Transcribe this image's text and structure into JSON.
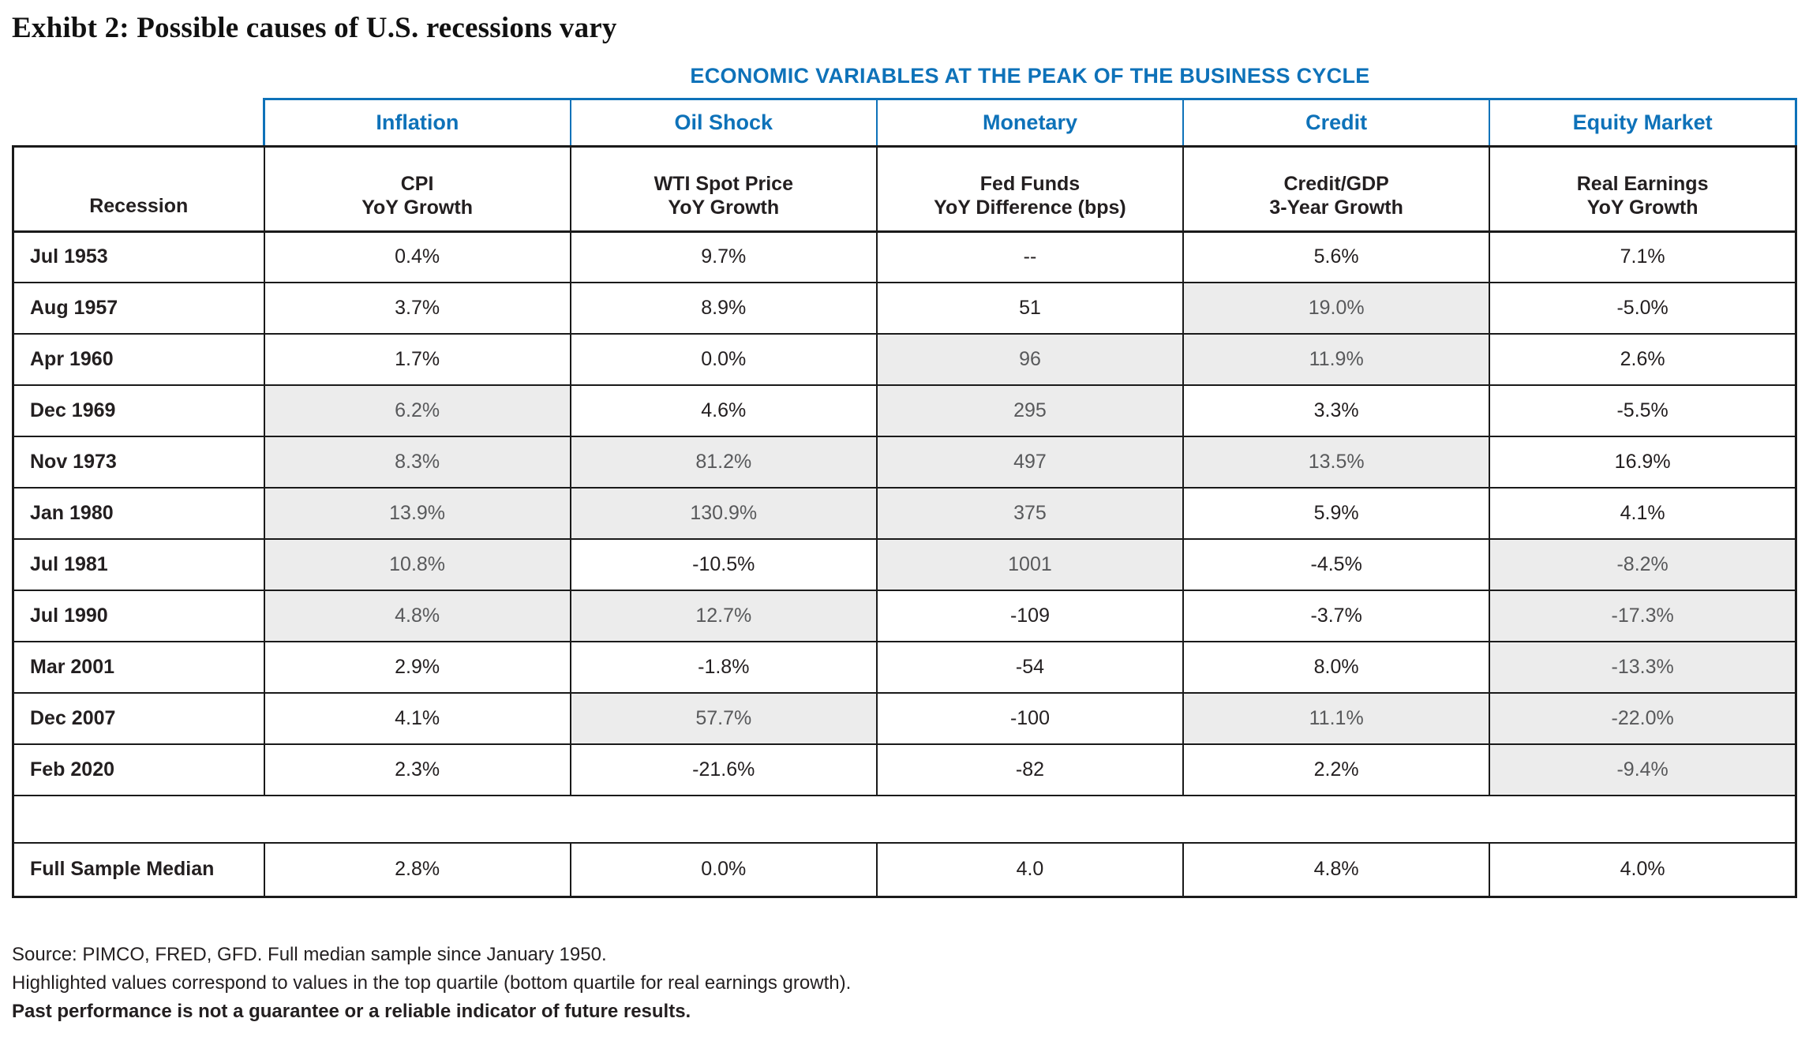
{
  "title": "Exhibt 2: Possible causes of U.S. recessions vary",
  "chart_data": {
    "type": "table",
    "banner": "ECONOMIC VARIABLES AT THE PEAK OF THE BUSINESS CYCLE",
    "group_headers": [
      "Inflation",
      "Oil Shock",
      "Monetary",
      "Credit",
      "Equity Market"
    ],
    "row_header": "Recession",
    "column_headers": [
      [
        "CPI",
        "YoY Growth"
      ],
      [
        "WTI Spot Price",
        "YoY Growth"
      ],
      [
        "Fed Funds",
        "YoY Difference (bps)"
      ],
      [
        "Credit/GDP",
        "3-Year Growth"
      ],
      [
        "Real Earnings",
        "YoY Growth"
      ]
    ],
    "rows": [
      {
        "label": "Jul 1953",
        "values": [
          "0.4%",
          "9.7%",
          "--",
          "5.6%",
          "7.1%"
        ],
        "highlighted": [
          false,
          false,
          false,
          false,
          false
        ]
      },
      {
        "label": "Aug 1957",
        "values": [
          "3.7%",
          "8.9%",
          "51",
          "19.0%",
          "-5.0%"
        ],
        "highlighted": [
          false,
          false,
          false,
          true,
          false
        ]
      },
      {
        "label": "Apr 1960",
        "values": [
          "1.7%",
          "0.0%",
          "96",
          "11.9%",
          "2.6%"
        ],
        "highlighted": [
          false,
          false,
          true,
          true,
          false
        ]
      },
      {
        "label": "Dec 1969",
        "values": [
          "6.2%",
          "4.6%",
          "295",
          "3.3%",
          "-5.5%"
        ],
        "highlighted": [
          true,
          false,
          true,
          false,
          false
        ]
      },
      {
        "label": "Nov 1973",
        "values": [
          "8.3%",
          "81.2%",
          "497",
          "13.5%",
          "16.9%"
        ],
        "highlighted": [
          true,
          true,
          true,
          true,
          false
        ]
      },
      {
        "label": "Jan 1980",
        "values": [
          "13.9%",
          "130.9%",
          "375",
          "5.9%",
          "4.1%"
        ],
        "highlighted": [
          true,
          true,
          true,
          false,
          false
        ]
      },
      {
        "label": "Jul 1981",
        "values": [
          "10.8%",
          "-10.5%",
          "1001",
          "-4.5%",
          "-8.2%"
        ],
        "highlighted": [
          true,
          false,
          true,
          false,
          true
        ]
      },
      {
        "label": "Jul 1990",
        "values": [
          "4.8%",
          "12.7%",
          "-109",
          "-3.7%",
          "-17.3%"
        ],
        "highlighted": [
          true,
          true,
          false,
          false,
          true
        ]
      },
      {
        "label": "Mar 2001",
        "values": [
          "2.9%",
          "-1.8%",
          "-54",
          "8.0%",
          "-13.3%"
        ],
        "highlighted": [
          false,
          false,
          false,
          false,
          true
        ]
      },
      {
        "label": "Dec 2007",
        "values": [
          "4.1%",
          "57.7%",
          "-100",
          "11.1%",
          "-22.0%"
        ],
        "highlighted": [
          false,
          true,
          false,
          true,
          true
        ]
      },
      {
        "label": "Feb 2020",
        "values": [
          "2.3%",
          "-21.6%",
          "-82",
          "2.2%",
          "-9.4%"
        ],
        "highlighted": [
          false,
          false,
          false,
          false,
          true
        ]
      }
    ],
    "median_row": {
      "label": "Full Sample Median",
      "values": [
        "2.8%",
        "0.0%",
        "4.0",
        "4.8%",
        "4.0%"
      ]
    }
  },
  "footnotes": [
    "Source: PIMCO, FRED, GFD. Full median sample since January 1950.",
    "Highlighted values correspond to values in the top quartile (bottom quartile for real earnings growth).",
    "Past performance is not a guarantee or a reliable indicator of future results."
  ],
  "colors": {
    "accent_blue": "#0e72b9",
    "border": "#1a1a1a",
    "text": "#231f20",
    "highlight_bg": "#ececec",
    "highlight_text": "#58595b"
  }
}
